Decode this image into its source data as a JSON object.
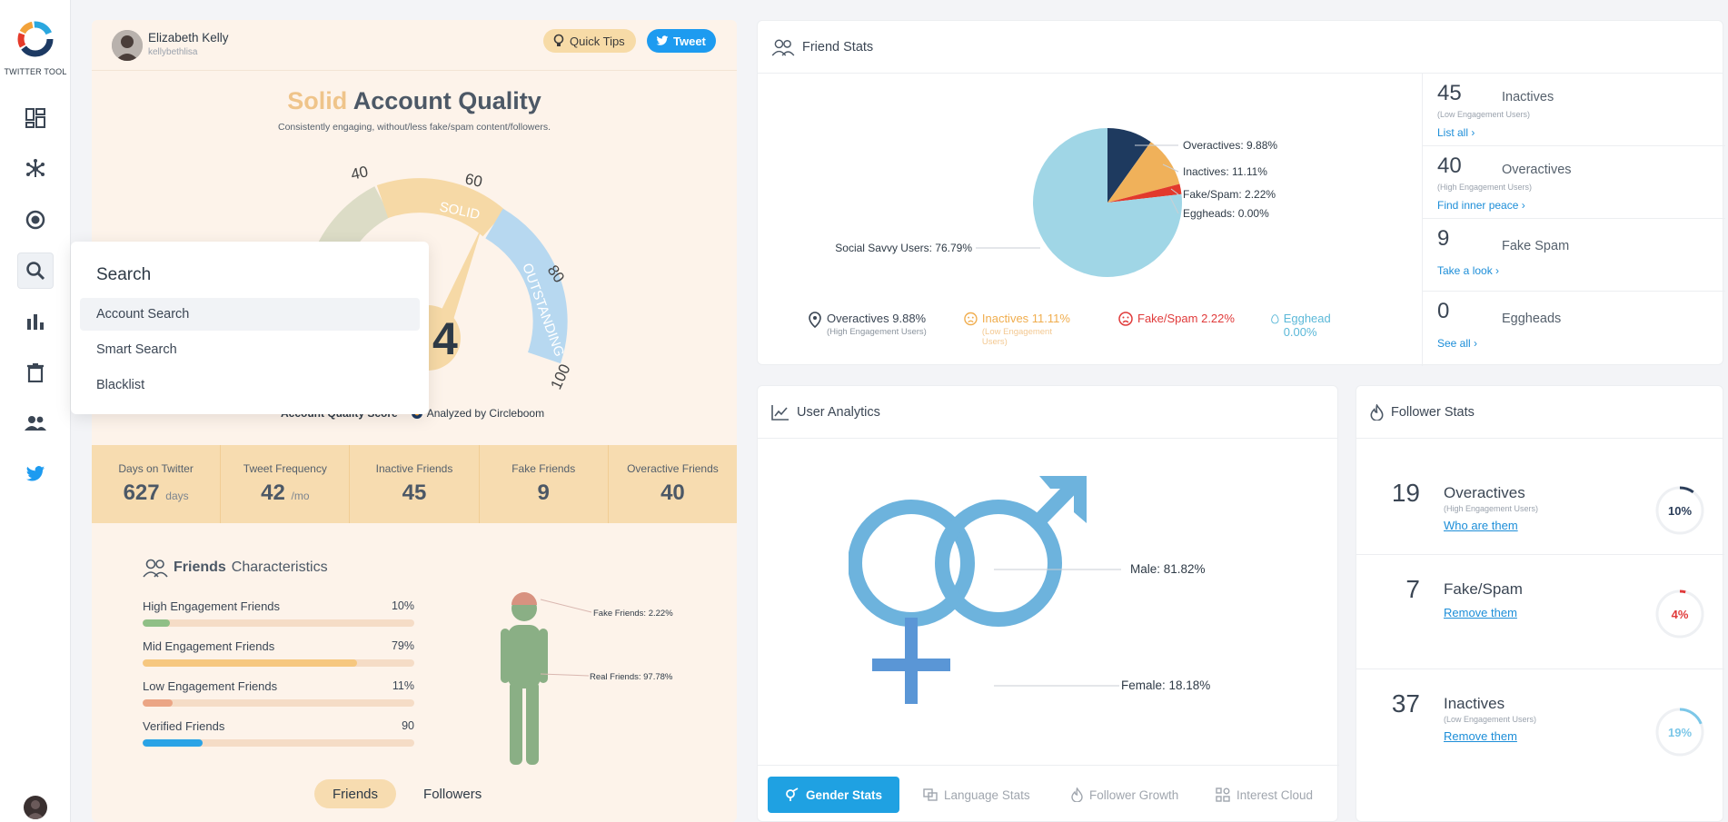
{
  "app": {
    "logo_text": "TWITTER TOOL"
  },
  "sidebar": {
    "items": [
      {
        "name": "dashboard-icon"
      },
      {
        "name": "network-icon"
      },
      {
        "name": "target-icon"
      },
      {
        "name": "search-icon"
      },
      {
        "name": "bar-chart-icon"
      },
      {
        "name": "trash-icon"
      },
      {
        "name": "users-icon"
      },
      {
        "name": "twitter-icon"
      }
    ]
  },
  "search_menu": {
    "title": "Search",
    "items": [
      "Account Search",
      "Smart Search",
      "Blacklist"
    ]
  },
  "profile": {
    "name": "Elizabeth Kelly",
    "handle": "kellybethlisa"
  },
  "header_buttons": {
    "quick_tips": "Quick Tips",
    "tweet": "Tweet"
  },
  "quality": {
    "title_accent": "Solid",
    "title_rest": "Account Quality",
    "subtitle": "Consistently engaging, without/less fake/spam content/followers.",
    "score_visible": "4",
    "gauge_ticks": [
      "40",
      "60",
      "80",
      "100"
    ],
    "gauge_bands": [
      "SOLID",
      "OUTSTANDING"
    ],
    "caption_left": "Account Quality Score",
    "caption_right": "Analyzed by Circleboom"
  },
  "stats_strip": [
    {
      "label": "Days on Twitter",
      "value": "627",
      "unit": "days"
    },
    {
      "label": "Tweet Frequency",
      "value": "42",
      "unit": "/mo"
    },
    {
      "label": "Inactive Friends",
      "value": "45",
      "unit": ""
    },
    {
      "label": "Fake Friends",
      "value": "9",
      "unit": ""
    },
    {
      "label": "Overactive Friends",
      "value": "40",
      "unit": ""
    }
  ],
  "friends_characteristics": {
    "title_bold": "Friends",
    "title_rest": "Characteristics",
    "bars": [
      {
        "label": "High Engagement Friends",
        "value": "10%",
        "fill": 0.1,
        "color": "#8fbf86"
      },
      {
        "label": "Mid Engagement Friends",
        "value": "79%",
        "fill": 0.79,
        "color": "#f6c77f"
      },
      {
        "label": "Low Engagement Friends",
        "value": "11%",
        "fill": 0.11,
        "color": "#eba585"
      },
      {
        "label": "Verified Friends",
        "value": "90",
        "fill": 0.22,
        "color": "#2aa3e6"
      }
    ],
    "fake_label": "Fake Friends: 2.22%",
    "real_label": "Real Friends: 97.78%",
    "tabs": [
      "Friends",
      "Followers"
    ]
  },
  "friend_stats": {
    "title": "Friend Stats",
    "pie_labels": {
      "overactives": "Overactives: 9.88%",
      "inactives": "Inactives: 11.11%",
      "fakespam": "Fake/Spam: 2.22%",
      "eggheads": "Eggheads: 0.00%",
      "social": "Social Savvy Users: 76.79%"
    },
    "legend": [
      {
        "label": "Overactives 9.88%",
        "sub": "(High Engagement Users)",
        "color": "#3b4654"
      },
      {
        "label": "Inactives 11.11%",
        "sub": "(Low Engagement Users)",
        "color": "#f0ad4e"
      },
      {
        "label": "Fake/Spam 2.22%",
        "sub": "",
        "color": "#e03a3a"
      },
      {
        "label": "Egghead 0.00%",
        "sub": "",
        "color": "#5bb8d8"
      }
    ],
    "rows": [
      {
        "num": "45",
        "name": "Inactives",
        "sub": "(Low Engagement Users)",
        "link": "List all ›"
      },
      {
        "num": "40",
        "name": "Overactives",
        "sub": "(High Engagement Users)",
        "link": "Find inner peace ›"
      },
      {
        "num": "9",
        "name": "Fake Spam",
        "sub": "",
        "link": "Take a look ›"
      },
      {
        "num": "0",
        "name": "Eggheads",
        "sub": "",
        "link": "See all ›"
      }
    ]
  },
  "user_analytics": {
    "title": "User Analytics",
    "male_label": "Male: 81.82%",
    "female_label": "Female: 18.18%",
    "tabs": [
      "Gender Stats",
      "Language Stats",
      "Follower Growth",
      "Interest Cloud"
    ]
  },
  "follower_stats": {
    "title": "Follower Stats",
    "rows": [
      {
        "num": "19",
        "name": "Overactives",
        "sub": "(High Engagement Users)",
        "link": "Who are them",
        "pct": "10%",
        "fill": 0.1,
        "color": "#2c3e5a"
      },
      {
        "num": "7",
        "name": "Fake/Spam",
        "sub": "",
        "link": "Remove them",
        "pct": "4%",
        "fill": 0.04,
        "color": "#e03a3a"
      },
      {
        "num": "37",
        "name": "Inactives",
        "sub": "(Low Engagement Users)",
        "link": "Remove them",
        "pct": "19%",
        "fill": 0.19,
        "color": "#7cc7e8"
      }
    ]
  },
  "chart_data": {
    "type": "pie",
    "title": "Friend Stats",
    "categories": [
      "Overactives",
      "Inactives",
      "Fake/Spam",
      "Eggheads",
      "Social Savvy Users"
    ],
    "values": [
      9.88,
      11.11,
      2.22,
      0.0,
      76.79
    ],
    "colors": [
      "#1e3a5f",
      "#f0b15a",
      "#e2392c",
      "#6fb4d8",
      "#a0d6e6"
    ]
  }
}
